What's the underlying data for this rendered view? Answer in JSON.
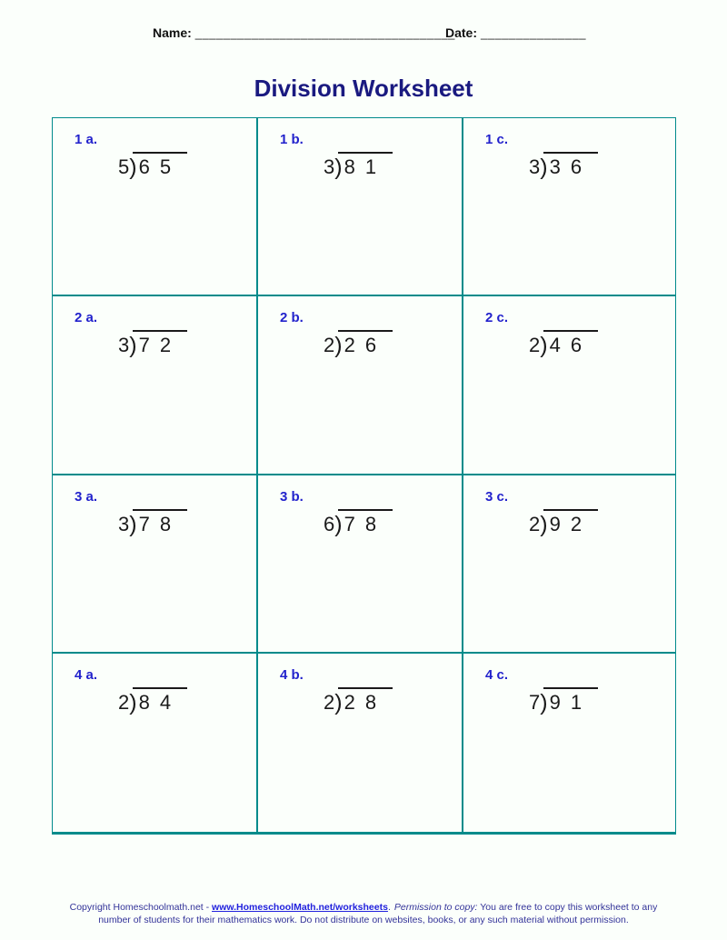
{
  "header": {
    "name_label": "Name:",
    "name_line": "_____________________________________",
    "date_label": "Date:",
    "date_line": "_______________"
  },
  "title": "Division Worksheet",
  "notation": {
    "bracket": ")"
  },
  "problems": [
    {
      "label": "1 a.",
      "divisor": "5",
      "dividend": "6 5"
    },
    {
      "label": "1 b.",
      "divisor": "3",
      "dividend": "8 1"
    },
    {
      "label": "1 c.",
      "divisor": "3",
      "dividend": "3 6"
    },
    {
      "label": "2 a.",
      "divisor": "3",
      "dividend": "7 2"
    },
    {
      "label": "2 b.",
      "divisor": "2",
      "dividend": "2 6"
    },
    {
      "label": "2 c.",
      "divisor": "2",
      "dividend": "4 6"
    },
    {
      "label": "3 a.",
      "divisor": "3",
      "dividend": "7 8"
    },
    {
      "label": "3 b.",
      "divisor": "6",
      "dividend": "7 8"
    },
    {
      "label": "3 c.",
      "divisor": "2",
      "dividend": "9 2"
    },
    {
      "label": "4 a.",
      "divisor": "2",
      "dividend": "8 4"
    },
    {
      "label": "4 b.",
      "divisor": "2",
      "dividend": "2 8"
    },
    {
      "label": "4 c.",
      "divisor": "7",
      "dividend": "9 1"
    }
  ],
  "footer": {
    "copyright_prefix": "Copyright Homeschoolmath.net - ",
    "link_text": "www.HomeschoolMath.net/worksheets",
    "after_link": ".",
    "permission_label": "Permission to copy:",
    "line1_rest": " You are free to copy this worksheet to any",
    "line2": "number of students for their mathematics work. Do not distribute on websites, books, or any such material without permission."
  },
  "colors": {
    "grid_border": "#008b8b",
    "problem_label_blue": "#2222cc",
    "title_navy": "#1a1a80",
    "footer_navy": "#333399",
    "link_blue": "#2222dd",
    "page_background": "#fbfffb"
  }
}
